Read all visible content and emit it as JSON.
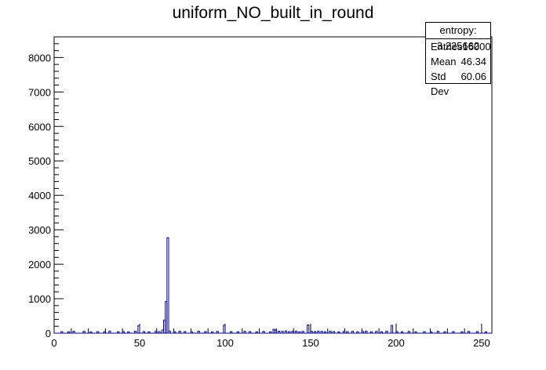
{
  "chart_data": {
    "type": "bar",
    "title": "uniform_NO_built_in_round",
    "xlabel": "",
    "ylabel": "",
    "xlim": [
      0,
      256
    ],
    "ylim": [
      0,
      8600
    ],
    "x_ticks": [
      0,
      50,
      100,
      150,
      200,
      250
    ],
    "y_ticks": [
      0,
      1000,
      2000,
      3000,
      4000,
      5000,
      6000,
      7000,
      8000
    ],
    "x_tick_labels": [
      "0",
      "50",
      "100",
      "150",
      "200",
      "250"
    ],
    "y_tick_labels": [
      "0",
      "1000",
      "2000",
      "3000",
      "4000",
      "5000",
      "6000",
      "7000",
      "8000"
    ],
    "bin_width": 1,
    "bins": [
      {
        "x": 4,
        "y": 45
      },
      {
        "x": 8,
        "y": 40
      },
      {
        "x": 11,
        "y": 55
      },
      {
        "x": 17,
        "y": 50
      },
      {
        "x": 21,
        "y": 40
      },
      {
        "x": 25,
        "y": 45
      },
      {
        "x": 29,
        "y": 40
      },
      {
        "x": 32,
        "y": 60
      },
      {
        "x": 37,
        "y": 40
      },
      {
        "x": 40,
        "y": 45
      },
      {
        "x": 43,
        "y": 40
      },
      {
        "x": 47,
        "y": 55
      },
      {
        "x": 49,
        "y": 220
      },
      {
        "x": 52,
        "y": 45
      },
      {
        "x": 55,
        "y": 40
      },
      {
        "x": 59,
        "y": 50
      },
      {
        "x": 61,
        "y": 45
      },
      {
        "x": 63,
        "y": 90
      },
      {
        "x": 64,
        "y": 380
      },
      {
        "x": 65,
        "y": 920
      },
      {
        "x": 66,
        "y": 2770
      },
      {
        "x": 67,
        "y": 60
      },
      {
        "x": 70,
        "y": 40
      },
      {
        "x": 73,
        "y": 55
      },
      {
        "x": 76,
        "y": 45
      },
      {
        "x": 80,
        "y": 40
      },
      {
        "x": 84,
        "y": 60
      },
      {
        "x": 88,
        "y": 45
      },
      {
        "x": 92,
        "y": 40
      },
      {
        "x": 95,
        "y": 50
      },
      {
        "x": 99,
        "y": 230
      },
      {
        "x": 103,
        "y": 45
      },
      {
        "x": 107,
        "y": 40
      },
      {
        "x": 111,
        "y": 55
      },
      {
        "x": 114,
        "y": 45
      },
      {
        "x": 118,
        "y": 40
      },
      {
        "x": 122,
        "y": 50
      },
      {
        "x": 126,
        "y": 40
      },
      {
        "x": 128,
        "y": 110
      },
      {
        "x": 129,
        "y": 90
      },
      {
        "x": 131,
        "y": 60
      },
      {
        "x": 133,
        "y": 50
      },
      {
        "x": 135,
        "y": 65
      },
      {
        "x": 137,
        "y": 45
      },
      {
        "x": 139,
        "y": 55
      },
      {
        "x": 141,
        "y": 60
      },
      {
        "x": 143,
        "y": 40
      },
      {
        "x": 145,
        "y": 50
      },
      {
        "x": 148,
        "y": 240
      },
      {
        "x": 150,
        "y": 55
      },
      {
        "x": 152,
        "y": 45
      },
      {
        "x": 154,
        "y": 60
      },
      {
        "x": 156,
        "y": 50
      },
      {
        "x": 158,
        "y": 40
      },
      {
        "x": 161,
        "y": 55
      },
      {
        "x": 163,
        "y": 45
      },
      {
        "x": 166,
        "y": 40
      },
      {
        "x": 169,
        "y": 50
      },
      {
        "x": 171,
        "y": 45
      },
      {
        "x": 174,
        "y": 55
      },
      {
        "x": 177,
        "y": 40
      },
      {
        "x": 180,
        "y": 45
      },
      {
        "x": 182,
        "y": 60
      },
      {
        "x": 185,
        "y": 40
      },
      {
        "x": 188,
        "y": 50
      },
      {
        "x": 191,
        "y": 40
      },
      {
        "x": 194,
        "y": 55
      },
      {
        "x": 197,
        "y": 225
      },
      {
        "x": 200,
        "y": 45
      },
      {
        "x": 203,
        "y": 40
      },
      {
        "x": 207,
        "y": 50
      },
      {
        "x": 211,
        "y": 40
      },
      {
        "x": 216,
        "y": 45
      },
      {
        "x": 220,
        "y": 40
      },
      {
        "x": 224,
        "y": 55
      },
      {
        "x": 228,
        "y": 40
      },
      {
        "x": 233,
        "y": 45
      },
      {
        "x": 238,
        "y": 40
      },
      {
        "x": 242,
        "y": 50
      },
      {
        "x": 247,
        "y": 45
      },
      {
        "x": 252,
        "y": 40
      }
    ],
    "stats": {
      "header": "entropy: 3.225662",
      "rows": [
        {
          "label": "Entries",
          "value": "16000"
        },
        {
          "label": "Mean",
          "value": "46.34"
        },
        {
          "label": "Std Dev",
          "value": "60.06"
        }
      ]
    },
    "line_color": "#00008b",
    "grid": false,
    "legend_position": "top-right"
  }
}
